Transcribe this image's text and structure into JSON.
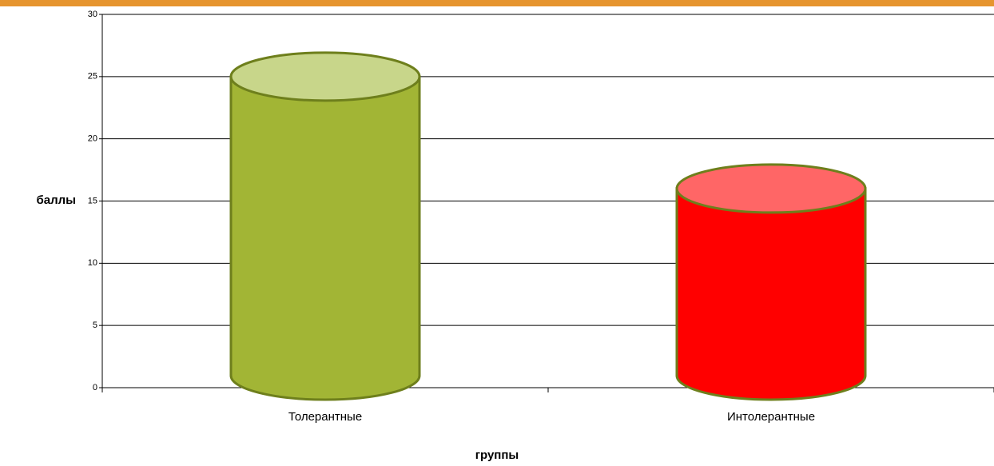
{
  "chart_data": {
    "type": "cylinder-bar",
    "categories": [
      "Толерантные",
      "Интолерантные"
    ],
    "values": [
      25,
      16
    ],
    "colors": [
      "#a2b535",
      "#ff0000"
    ],
    "top_colors": [
      "#c8d68a",
      "#ff6666"
    ],
    "y_label": "баллы",
    "x_label": "группы",
    "ylim": [
      0,
      30
    ],
    "yticks": [
      0,
      5,
      10,
      15,
      20,
      25,
      30
    ],
    "grid": true
  }
}
